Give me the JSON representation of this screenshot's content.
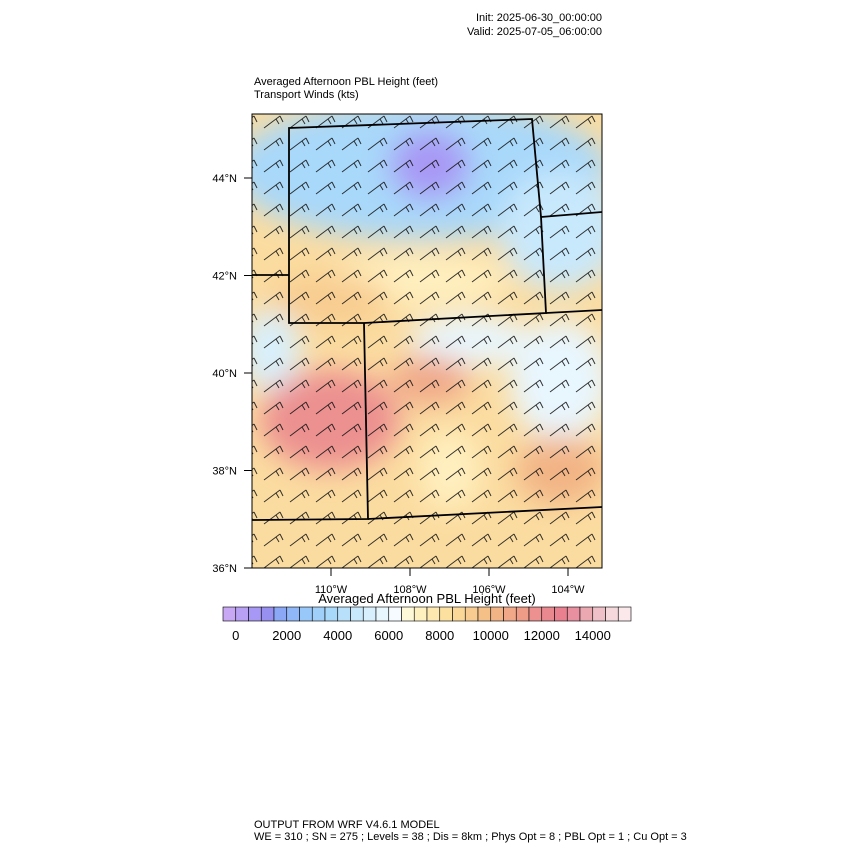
{
  "header": {
    "init": "Init: 2025-06-30_00:00:00",
    "valid": "Valid: 2025-07-05_06:00:00"
  },
  "map": {
    "title": "Averaged Afternoon PBL Height   (feet)",
    "subtitle": "Transport Winds   (kts)",
    "lat_labels": [
      "44°N",
      "42°N",
      "40°N",
      "38°N",
      "36°N"
    ],
    "lon_labels": [
      "110°W",
      "108°W",
      "106°W",
      "104°W"
    ]
  },
  "colorbar": {
    "title": "Averaged Afternoon PBL Height  (feet)",
    "ticks": [
      0,
      2000,
      4000,
      6000,
      8000,
      10000,
      12000,
      14000
    ],
    "levels": [
      0,
      500,
      1000,
      1500,
      2000,
      2500,
      3000,
      3500,
      4000,
      4500,
      5000,
      5500,
      6000,
      6500,
      7000,
      7500,
      8000,
      8500,
      9000,
      9500,
      10000,
      10500,
      11000,
      11500,
      12000,
      12500,
      13000,
      13500,
      14000,
      14500,
      15000
    ],
    "colors": [
      "#c8a8f5",
      "#b8a0f5",
      "#a898f5",
      "#9890f0",
      "#8aa8f5",
      "#90b8f8",
      "#98c8fa",
      "#a0d0fa",
      "#a8d8fa",
      "#b8e0fb",
      "#c8e8fc",
      "#d8f0fd",
      "#e8f6fe",
      "#f5fbff",
      "#fff8d8",
      "#fff0c0",
      "#fde8b0",
      "#fce0a0",
      "#fbd898",
      "#f8cc90",
      "#f5c088",
      "#f2b485",
      "#f0a888",
      "#ee9c88",
      "#ec9090",
      "#ea8890",
      "#e88090",
      "#e890a0",
      "#eca8b0",
      "#f0c0c8",
      "#f5d8dc",
      "#fae8ea"
    ]
  },
  "footer": {
    "line1": "OUTPUT FROM WRF V4.6.1 MODEL",
    "line2": "WE = 310 ; SN = 275 ; Levels = 38 ; Dis = 8km ; Phys Opt = 8 ; PBL Opt = 1 ; Cu Opt = 3"
  }
}
